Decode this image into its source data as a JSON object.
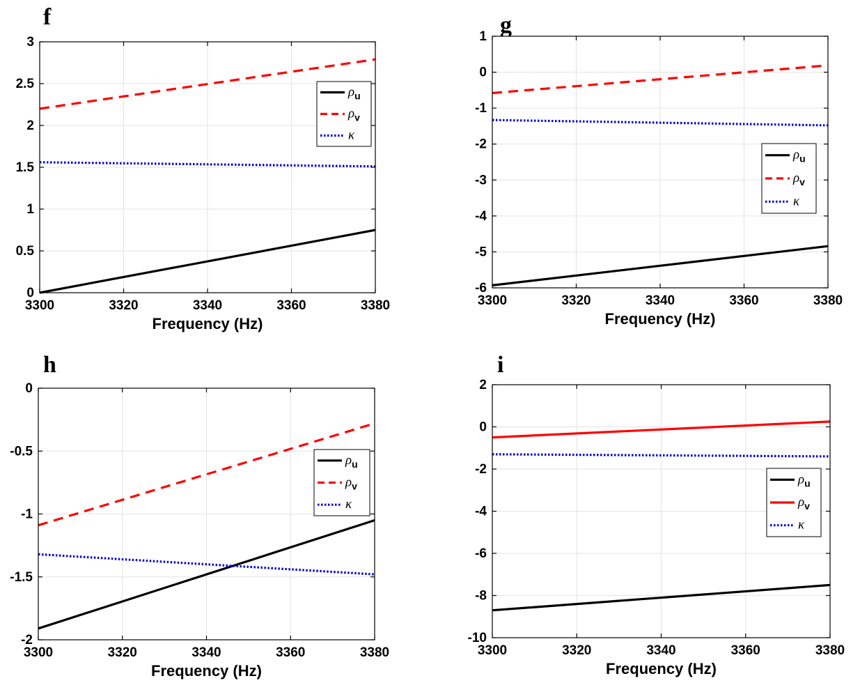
{
  "chart_data": [
    {
      "panel": "f",
      "type": "line",
      "xlabel": "Frequency (Hz)",
      "ylabel": "",
      "xlim": [
        3300,
        3380
      ],
      "ylim": [
        0,
        3
      ],
      "xticks": [
        "3300",
        "3320",
        "3340",
        "3360",
        "3380"
      ],
      "yticks": [
        "0",
        "0.5",
        "1",
        "1.5",
        "2",
        "2.5",
        "3"
      ],
      "grid": true,
      "legend_position": "right",
      "x": [
        3300,
        3380
      ],
      "series": [
        {
          "name": "ρ",
          "subscript": "u",
          "color": "#000000",
          "style": "solid",
          "values": [
            0.0,
            0.75
          ]
        },
        {
          "name": "ρ",
          "subscript": "v",
          "color": "#ff0000",
          "style": "dashed",
          "values": [
            2.2,
            2.79
          ]
        },
        {
          "name": "κ",
          "subscript": "",
          "color": "#0000dd",
          "style": "dotted",
          "values": [
            1.56,
            1.51
          ]
        }
      ]
    },
    {
      "panel": "g",
      "type": "line",
      "xlabel": "Frequency (Hz)",
      "ylabel": "",
      "xlim": [
        3300,
        3380
      ],
      "ylim": [
        -6,
        1
      ],
      "xticks": [
        "3300",
        "3320",
        "3340",
        "3360",
        "3380"
      ],
      "yticks": [
        "-6",
        "-5",
        "-4",
        "-3",
        "-2",
        "-1",
        "0",
        "1"
      ],
      "grid": true,
      "legend_position": "right",
      "x": [
        3300,
        3380
      ],
      "series": [
        {
          "name": "ρ",
          "subscript": "u",
          "color": "#000000",
          "style": "solid",
          "values": [
            -5.93,
            -4.84
          ]
        },
        {
          "name": "ρ",
          "subscript": "v",
          "color": "#ff0000",
          "style": "dashed",
          "values": [
            -0.58,
            0.19
          ]
        },
        {
          "name": "κ",
          "subscript": "",
          "color": "#0000dd",
          "style": "dotted",
          "values": [
            -1.33,
            -1.48
          ]
        }
      ]
    },
    {
      "panel": "h",
      "type": "line",
      "xlabel": "Frequency (Hz)",
      "ylabel": "",
      "xlim": [
        3300,
        3380
      ],
      "ylim": [
        -2,
        0
      ],
      "xticks": [
        "3300",
        "3320",
        "3340",
        "3360",
        "3380"
      ],
      "yticks": [
        "-2",
        "-1.5",
        "-1",
        "-0.5",
        "0"
      ],
      "grid": true,
      "legend_position": "right",
      "x": [
        3300,
        3380
      ],
      "series": [
        {
          "name": "ρ",
          "subscript": "u",
          "color": "#000000",
          "style": "solid",
          "values": [
            -1.91,
            -1.05
          ]
        },
        {
          "name": "ρ",
          "subscript": "v",
          "color": "#ff0000",
          "style": "dashed",
          "values": [
            -1.09,
            -0.28
          ]
        },
        {
          "name": "κ",
          "subscript": "",
          "color": "#0000dd",
          "style": "dotted",
          "values": [
            -1.32,
            -1.48
          ]
        }
      ]
    },
    {
      "panel": "i",
      "type": "line",
      "xlabel": "Frequency (Hz)",
      "ylabel": "",
      "xlim": [
        3300,
        3380
      ],
      "ylim": [
        -10,
        2
      ],
      "xticks": [
        "3300",
        "3320",
        "3340",
        "3360",
        "3380"
      ],
      "yticks": [
        "-10",
        "-8",
        "-6",
        "-4",
        "-2",
        "0",
        "2"
      ],
      "grid": true,
      "legend_position": "right",
      "x": [
        3300,
        3380
      ],
      "series": [
        {
          "name": "ρ",
          "subscript": "u",
          "color": "#000000",
          "style": "solid",
          "values": [
            -8.7,
            -7.5
          ]
        },
        {
          "name": "ρ",
          "subscript": "v",
          "color": "#ff0000",
          "style": "solid",
          "values": [
            -0.5,
            0.25
          ]
        },
        {
          "name": "κ",
          "subscript": "",
          "color": "#0000dd",
          "style": "dotted",
          "values": [
            -1.3,
            -1.4
          ]
        }
      ]
    }
  ]
}
